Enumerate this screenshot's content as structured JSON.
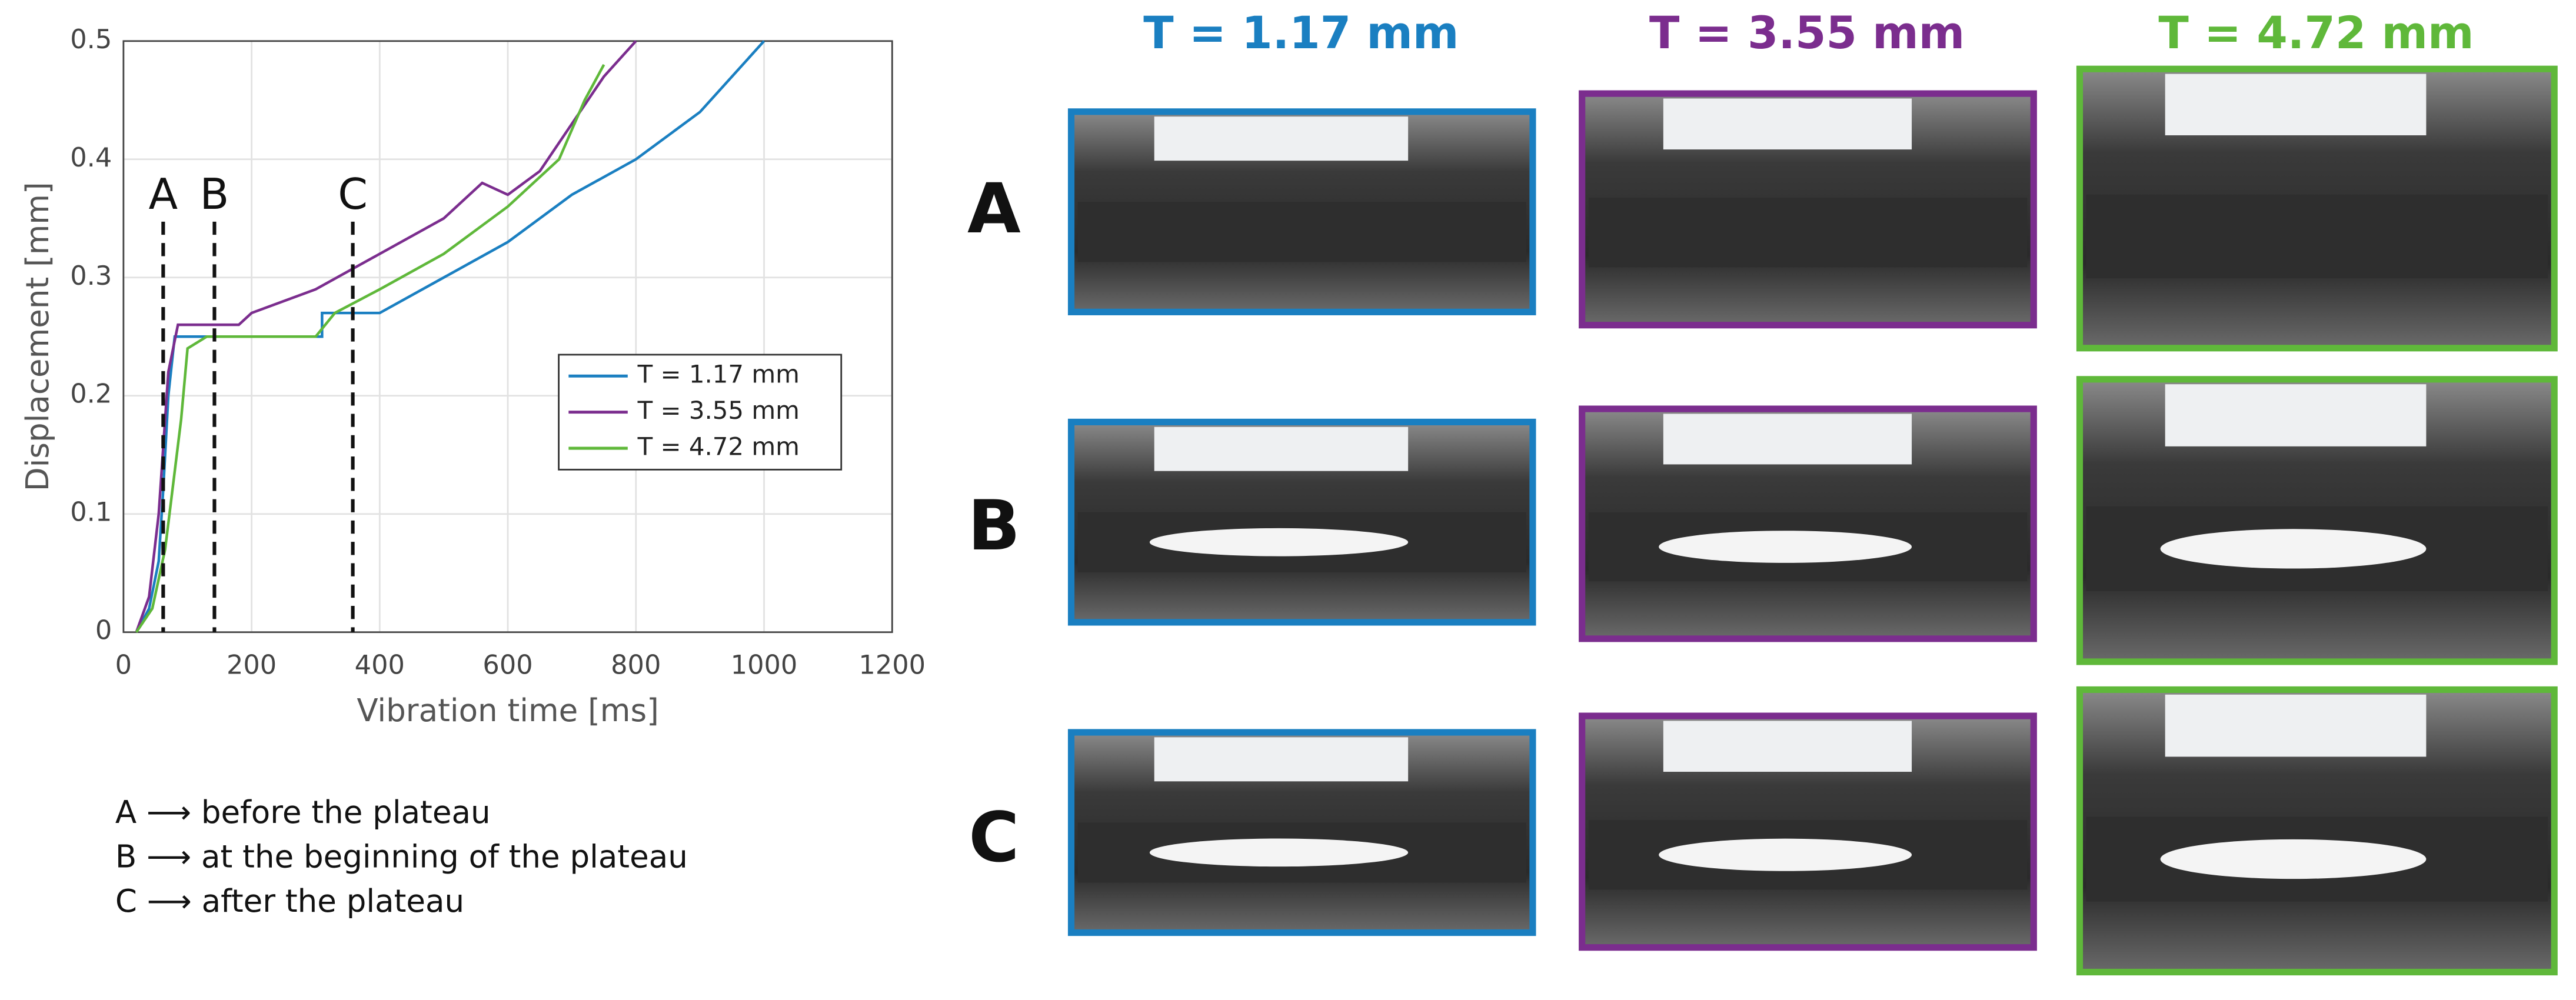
{
  "chart_data": {
    "type": "line",
    "x_label": "Vibration time [ms]",
    "y_label": "Displacement [mm]",
    "xlim": [
      0,
      1200
    ],
    "xticks": [
      0,
      200,
      400,
      600,
      800,
      1000,
      1200
    ],
    "ylim": [
      0,
      0.5
    ],
    "yticks": [
      0,
      0.1,
      0.2,
      0.3,
      0.4,
      0.5
    ],
    "grid": true,
    "legend": "lower right",
    "series": [
      {
        "name": "T = 1.17 mm",
        "color": "#1a7fc1",
        "x": [
          20,
          40,
          55,
          62,
          70,
          80,
          100,
          310,
          310,
          400,
          500,
          600,
          700,
          800,
          900,
          1000
        ],
        "values": [
          0,
          0.02,
          0.06,
          0.12,
          0.2,
          0.25,
          0.25,
          0.25,
          0.27,
          0.27,
          0.3,
          0.33,
          0.37,
          0.4,
          0.44,
          0.5
        ]
      },
      {
        "name": "T = 3.55 mm",
        "color": "#7b2d8e",
        "x": [
          20,
          40,
          55,
          70,
          85,
          180,
          200,
          300,
          400,
          500,
          560,
          600,
          650,
          700,
          750,
          800
        ],
        "values": [
          0,
          0.03,
          0.1,
          0.22,
          0.26,
          0.26,
          0.27,
          0.29,
          0.32,
          0.35,
          0.38,
          0.37,
          0.39,
          0.43,
          0.47,
          0.5
        ]
      },
      {
        "name": "T = 4.72 mm",
        "color": "#5fb83a",
        "x": [
          20,
          45,
          65,
          90,
          100,
          130,
          300,
          330,
          400,
          500,
          600,
          680,
          720,
          750
        ],
        "values": [
          0,
          0.02,
          0.07,
          0.18,
          0.24,
          0.25,
          0.25,
          0.27,
          0.29,
          0.32,
          0.36,
          0.4,
          0.45,
          0.48
        ]
      }
    ],
    "markers": [
      {
        "label": "A",
        "x": 62
      },
      {
        "label": "B",
        "x": 142
      },
      {
        "label": "C",
        "x": 358
      }
    ]
  },
  "notes": [
    "A ⟶ before the plateau",
    "B ⟶ at the beginning of the plateau",
    "C ⟶ after the plateau"
  ],
  "panel": {
    "columns": [
      {
        "title": "T = 1.17 mm",
        "color": "#1a7fc1"
      },
      {
        "title": "T = 3.55 mm",
        "color": "#7b2d8e"
      },
      {
        "title": "T = 4.72 mm",
        "color": "#5fb83a"
      }
    ],
    "rows": [
      "A",
      "B",
      "C"
    ]
  }
}
